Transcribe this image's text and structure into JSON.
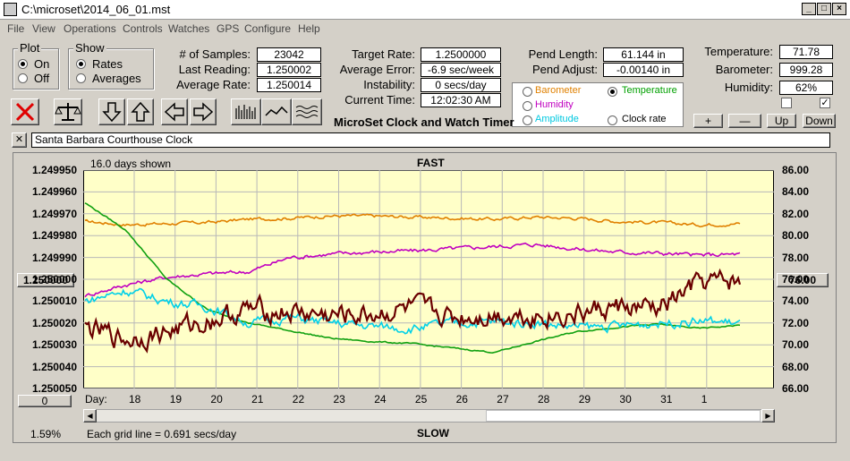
{
  "window": {
    "title": "C:\\microset\\2014_06_01.mst"
  },
  "menu": [
    "File",
    "View",
    "Operations",
    "Controls",
    "Watches",
    "GPS",
    "Configure",
    "Help"
  ],
  "plot_group": {
    "title": "Plot",
    "on": "On",
    "off": "Off",
    "selected": "On"
  },
  "show_group": {
    "title": "Show",
    "rates": "Rates",
    "averages": "Averages",
    "selected": "Rates"
  },
  "stats": {
    "samples_label": "# of Samples:",
    "samples": "23042",
    "last_label": "Last Reading:",
    "last": "1.250002",
    "avg_rate_label": "Average Rate:",
    "avg_rate": "1.250014",
    "target_label": "Target Rate:",
    "target": "1.2500000",
    "avg_err_label": "Average Error:",
    "avg_err": "-6.9 sec/week",
    "instab_label": "Instability:",
    "instab": "0 secs/day",
    "time_label": "Current Time:",
    "time": "12:02:30 AM",
    "pend_len_label": "Pend Length:",
    "pend_len": "61.144 in",
    "pend_adj_label": "Pend Adjust:",
    "pend_adj": "-0.00140 in",
    "temp_label": "Temperature:",
    "temp": "71.78",
    "baro_label": "Barometer:",
    "baro": "999.28",
    "hum_label": "Humidity:",
    "hum": "62%"
  },
  "app_name": "MicroSet Clock and Watch Timer",
  "sensor_options": [
    {
      "label": "Barometer",
      "color": "#e08000",
      "selected": false
    },
    {
      "label": "Temperature",
      "color": "#00a000",
      "selected": true
    },
    {
      "label": "Humidity",
      "color": "#c000c0",
      "selected": false
    },
    {
      "label": "Clock rate",
      "color": "#000000",
      "selected": false
    },
    {
      "label": "Amplitude",
      "color": "#00c8e0",
      "selected": false
    }
  ],
  "checkboxes": [
    {
      "checked": false
    },
    {
      "checked": true
    }
  ],
  "adjust_buttons": {
    "plus": "+",
    "minus": "—",
    "up": "Up",
    "down": "Down"
  },
  "clock_name": "Santa Barbara Courthouse Clock",
  "close_x": "✕",
  "plot": {
    "days_shown": "16.0 days shown",
    "top_label": "FAST",
    "bottom_label": "SLOW",
    "grid_note": "Each grid line = 0.691 secs/day",
    "percent": "1.59%",
    "left_zero_button": "0",
    "center_rate_button": "1.250000",
    "right_center_button": "76.00",
    "day_prefix": "Day:"
  },
  "chart_data": {
    "type": "line",
    "x_ticks": [
      "18",
      "19",
      "20",
      "21",
      "22",
      "23",
      "24",
      "25",
      "26",
      "27",
      "28",
      "29",
      "30",
      "31",
      "1"
    ],
    "y_left_ticks": [
      "1.249950",
      "1.249960",
      "1.249970",
      "1.249980",
      "1.249990",
      "1.250000",
      "1.250010",
      "1.250020",
      "1.250030",
      "1.250040",
      "1.250050"
    ],
    "y_right_ticks": [
      "86.00",
      "84.00",
      "82.00",
      "80.00",
      "78.00",
      "76.00",
      "74.00",
      "72.00",
      "70.00",
      "68.00",
      "66.00"
    ],
    "ylim_left": [
      1.24995,
      1.25005
    ],
    "ylim_right": [
      66,
      86
    ],
    "left_axis_inverted": true,
    "grid": true,
    "series": [
      {
        "name": "Barometer",
        "color": "#e08000",
        "axis": "right",
        "values": [
          81.3,
          81.0,
          81.1,
          81.2,
          81.5,
          81.6,
          81.8,
          81.8,
          81.7,
          81.6,
          81.5,
          81.7,
          81.6,
          81.3,
          81.2,
          81.0,
          81.1
        ]
      },
      {
        "name": "Humidity",
        "color": "#c000c0",
        "axis": "right",
        "values": [
          74.5,
          75.5,
          76.2,
          76.5,
          76.7,
          78.0,
          78.3,
          78.5,
          78.6,
          78.8,
          79.0,
          79.2,
          78.8,
          78.5,
          78.4,
          78.2,
          78.3
        ]
      },
      {
        "name": "Temperature",
        "color": "#10a010",
        "axis": "right",
        "values": [
          83.0,
          80.5,
          76.0,
          73.2,
          72.0,
          71.3,
          70.6,
          70.3,
          70.1,
          69.7,
          69.3,
          70.3,
          71.2,
          71.6,
          71.9,
          71.5,
          71.8
        ]
      },
      {
        "name": "Amplitude",
        "color": "#00d0e8",
        "axis": "right",
        "values": [
          74.0,
          75.0,
          74.0,
          73.5,
          72.0,
          72.5,
          72.0,
          71.7,
          71.5,
          72.0,
          72.1,
          72.0,
          71.6,
          71.7,
          72.0,
          72.2,
          72.0
        ]
      },
      {
        "name": "Clock rate",
        "color": "#6a0000",
        "axis": "right",
        "values": [
          71.5,
          70.5,
          71.2,
          72.2,
          73.2,
          73.0,
          72.6,
          72.8,
          73.3,
          72.5,
          72.8,
          72.7,
          72.8,
          73.4,
          73.2,
          75.6,
          75.8
        ]
      }
    ]
  }
}
